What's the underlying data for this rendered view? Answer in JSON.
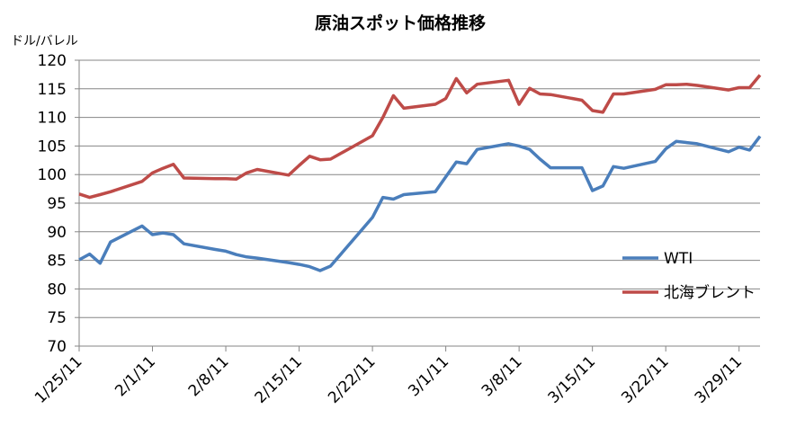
{
  "chart_data": {
    "type": "line",
    "title": "原油スポット価格推移",
    "y_label": "ドル/バレル",
    "x": [
      "1/25/11",
      "1/26/11",
      "1/27/11",
      "1/28/11",
      "1/31/11",
      "2/1/11",
      "2/2/11",
      "2/3/11",
      "2/4/11",
      "2/7/11",
      "2/8/11",
      "2/9/11",
      "2/10/11",
      "2/11/11",
      "2/14/11",
      "2/15/11",
      "2/16/11",
      "2/17/11",
      "2/18/11",
      "2/22/11",
      "2/23/11",
      "2/24/11",
      "2/25/11",
      "2/28/11",
      "3/1/11",
      "3/2/11",
      "3/3/11",
      "3/4/11",
      "3/7/11",
      "3/8/11",
      "3/9/11",
      "3/10/11",
      "3/11/11",
      "3/14/11",
      "3/15/11",
      "3/16/11",
      "3/17/11",
      "3/18/11",
      "3/21/11",
      "3/22/11",
      "3/23/11",
      "3/24/11",
      "3/25/11",
      "3/28/11",
      "3/29/11",
      "3/30/11",
      "3/31/11"
    ],
    "series": [
      {
        "name": "WTI",
        "color": "#4a7ebb",
        "values": [
          85.1,
          86.1,
          84.5,
          88.2,
          91.0,
          89.5,
          89.8,
          89.5,
          87.9,
          86.9,
          86.6,
          86.0,
          85.6,
          85.4,
          84.6,
          84.3,
          83.9,
          83.2,
          84.0,
          92.5,
          96.0,
          95.7,
          96.5,
          97.0,
          99.6,
          102.2,
          101.9,
          104.4,
          105.4,
          105.0,
          104.4,
          102.7,
          101.2,
          101.2,
          97.2,
          98.0,
          101.4,
          101.1,
          102.3,
          104.5,
          105.8,
          105.6,
          105.4,
          104.0,
          104.8,
          104.3,
          106.7
        ]
      },
      {
        "name": "北海ブレント",
        "color": "#be4b48",
        "values": [
          96.6,
          96.0,
          96.5,
          97.0,
          98.8,
          100.3,
          101.1,
          101.8,
          99.4,
          99.3,
          99.3,
          99.2,
          100.3,
          100.9,
          99.9,
          101.6,
          103.2,
          102.6,
          102.7,
          106.8,
          110.0,
          113.8,
          111.6,
          112.3,
          113.3,
          116.8,
          114.3,
          115.8,
          116.5,
          112.3,
          115.1,
          114.1,
          114.0,
          113.0,
          111.2,
          110.9,
          114.1,
          114.1,
          114.9,
          115.7,
          115.7,
          115.8,
          115.6,
          114.8,
          115.2,
          115.2,
          117.4
        ]
      }
    ],
    "xlim": [
      "1/25/11",
      "3/31/11"
    ],
    "xticks": [
      "1/25/11",
      "2/1/11",
      "2/8/11",
      "2/15/11",
      "2/22/11",
      "3/1/11",
      "3/8/11",
      "3/15/11",
      "3/22/11",
      "3/29/11"
    ],
    "ylim": [
      70,
      120
    ],
    "yticks": [
      70,
      75,
      80,
      85,
      90,
      95,
      100,
      105,
      110,
      115,
      120
    ],
    "grid": true,
    "legend": "right"
  }
}
